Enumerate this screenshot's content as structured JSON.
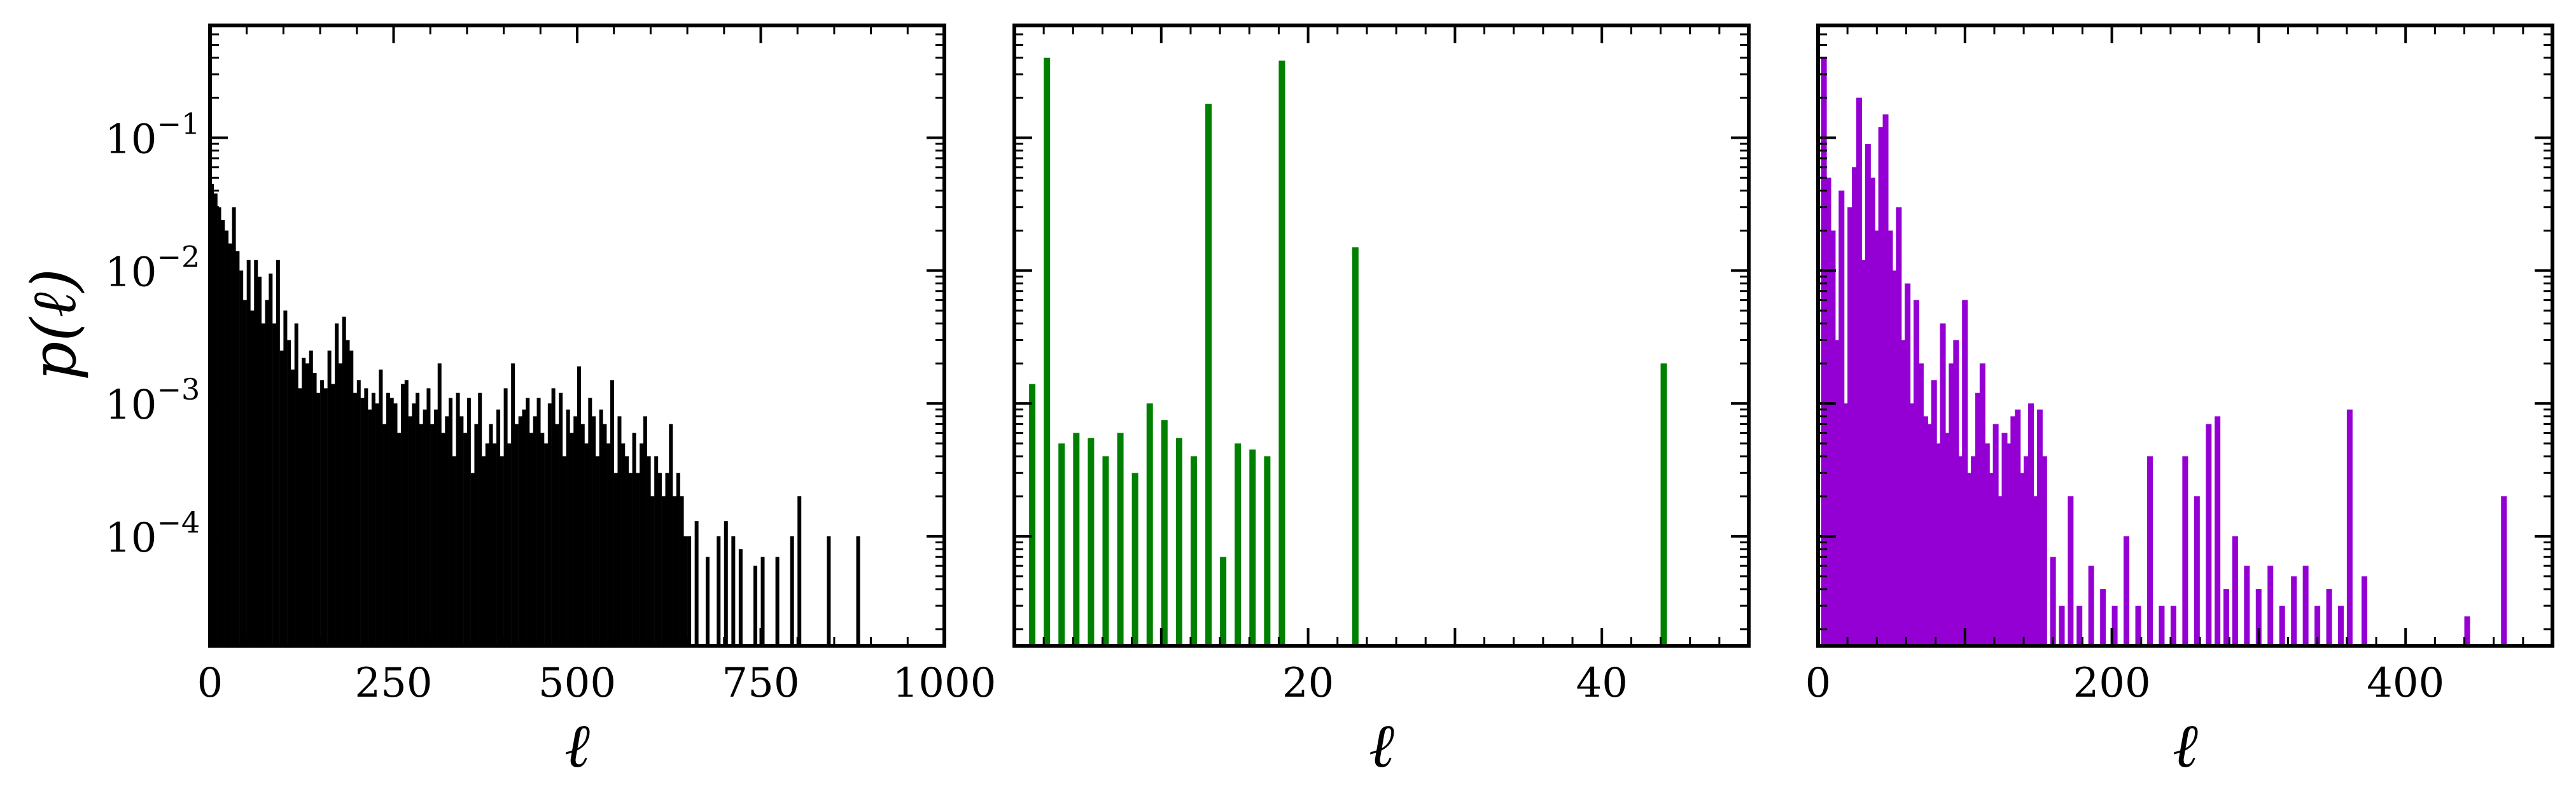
{
  "chart_data": [
    {
      "type": "bar",
      "panel": "left",
      "color": "#000000",
      "xlabel": "ℓ",
      "ylabel": "p(ℓ)",
      "xlim": [
        0,
        1000
      ],
      "ylim": [
        1.5e-05,
        0.7
      ],
      "yscale": "log",
      "xticks": [
        0,
        250,
        500,
        750,
        1000
      ],
      "xtick_labels": [
        "0",
        "250",
        "500",
        "750",
        "1000"
      ],
      "ytick_labels": [
        {
          "value": 0.1,
          "base": "10",
          "exp": "−1"
        },
        {
          "value": 0.01,
          "base": "10",
          "exp": "−2"
        },
        {
          "value": 0.001,
          "base": "10",
          "exp": "−3"
        },
        {
          "value": 0.0001,
          "base": "10",
          "exp": "−4"
        }
      ],
      "x": [
        0,
        5,
        10,
        15,
        20,
        25,
        30,
        35,
        40,
        45,
        50,
        55,
        60,
        65,
        70,
        75,
        80,
        85,
        90,
        95,
        100,
        105,
        110,
        115,
        120,
        125,
        130,
        135,
        140,
        145,
        150,
        155,
        160,
        165,
        170,
        175,
        180,
        185,
        190,
        195,
        200,
        205,
        210,
        215,
        220,
        225,
        230,
        235,
        240,
        245,
        250,
        255,
        260,
        265,
        270,
        275,
        280,
        285,
        290,
        295,
        300,
        305,
        310,
        315,
        320,
        325,
        330,
        335,
        340,
        345,
        350,
        355,
        360,
        365,
        370,
        375,
        380,
        385,
        390,
        395,
        400,
        405,
        410,
        415,
        420,
        425,
        430,
        435,
        440,
        445,
        450,
        455,
        460,
        465,
        470,
        475,
        480,
        485,
        490,
        495,
        500,
        505,
        510,
        515,
        520,
        525,
        530,
        535,
        540,
        545,
        550,
        555,
        560,
        565,
        570,
        575,
        580,
        585,
        590,
        595,
        600,
        605,
        610,
        615,
        620,
        625,
        630,
        635,
        640,
        645,
        650,
        660,
        675,
        690,
        700,
        710,
        720,
        740,
        750,
        770,
        790,
        800,
        840,
        880
      ],
      "values": [
        0.045,
        0.038,
        0.03,
        0.024,
        0.02,
        0.016,
        0.03,
        0.014,
        0.01,
        0.006,
        0.012,
        0.005,
        0.012,
        0.009,
        0.004,
        0.006,
        0.0095,
        0.004,
        0.012,
        0.0025,
        0.005,
        0.003,
        0.0018,
        0.004,
        0.0013,
        0.0022,
        0.002,
        0.0025,
        0.0017,
        0.0012,
        0.0015,
        0.0013,
        0.0025,
        0.0014,
        0.004,
        0.002,
        0.0045,
        0.003,
        0.0025,
        0.0012,
        0.0015,
        0.0011,
        0.0013,
        0.0009,
        0.0012,
        0.001,
        0.0018,
        0.0007,
        0.0012,
        0.0011,
        0.001,
        0.0006,
        0.0014,
        0.0015,
        0.0008,
        0.001,
        0.0012,
        0.0007,
        0.0009,
        0.0013,
        0.0007,
        0.0009,
        0.002,
        0.0006,
        0.0008,
        0.0011,
        0.0004,
        0.0012,
        0.0008,
        0.0006,
        0.0011,
        0.0003,
        0.0007,
        0.0012,
        0.0004,
        0.0005,
        0.0007,
        0.0005,
        0.0009,
        0.0004,
        0.0013,
        0.0005,
        0.002,
        0.0007,
        0.0008,
        0.0009,
        0.0011,
        0.0006,
        0.0008,
        0.0011,
        0.0006,
        0.0005,
        0.001,
        0.0013,
        0.0007,
        0.0012,
        0.0004,
        0.0009,
        0.0006,
        0.0008,
        0.0019,
        0.0007,
        0.0005,
        0.0011,
        0.0008,
        0.0004,
        0.0009,
        0.0007,
        0.0005,
        0.0015,
        0.0003,
        0.0008,
        0.0005,
        0.0004,
        0.0003,
        0.0006,
        0.0003,
        0.0005,
        0.0008,
        0.0004,
        0.0002,
        0.0004,
        0.0003,
        0.0002,
        0.0003,
        0.0007,
        0.0002,
        0.0003,
        0.0002,
        0.0001,
        0.0001,
        0.00013,
        7e-05,
        0.0001,
        0.00013,
        0.0001,
        8e-05,
        6e-05,
        7e-05,
        7e-05,
        0.0001,
        0.0002,
        0.0001,
        0.0001
      ]
    },
    {
      "type": "bar",
      "panel": "middle",
      "color": "#008000",
      "xlabel": "ℓ",
      "xlim": [
        0,
        50
      ],
      "ylim": [
        1.5e-05,
        0.7
      ],
      "yscale": "log",
      "xticks": [
        20,
        40
      ],
      "xtick_labels": [
        "20",
        "40"
      ],
      "x": [
        1,
        2,
        3,
        4,
        5,
        6,
        7,
        8,
        9,
        10,
        11,
        12,
        13,
        14,
        15,
        16,
        17,
        18,
        23,
        44
      ],
      "values": [
        0.0014,
        0.4,
        0.0005,
        0.0006,
        0.00055,
        0.0004,
        0.0006,
        0.0003,
        0.001,
        0.00075,
        0.00055,
        0.0004,
        0.18,
        7e-05,
        0.0005,
        0.00045,
        0.0004,
        0.38,
        0.015,
        0.002
      ]
    },
    {
      "type": "bar",
      "panel": "right",
      "color": "#9400d3",
      "xlabel": "ℓ",
      "xlim": [
        0,
        500
      ],
      "ylim": [
        1.5e-05,
        0.7
      ],
      "yscale": "log",
      "xticks": [
        0,
        200,
        400
      ],
      "xtick_labels": [
        "0",
        "200",
        "400"
      ],
      "x": [
        2,
        5,
        8,
        11,
        14,
        17,
        20,
        23,
        26,
        29,
        32,
        35,
        38,
        41,
        44,
        47,
        50,
        53,
        56,
        59,
        62,
        65,
        68,
        71,
        74,
        77,
        80,
        83,
        86,
        89,
        92,
        95,
        98,
        101,
        104,
        107,
        110,
        113,
        116,
        119,
        122,
        125,
        128,
        131,
        134,
        137,
        140,
        143,
        146,
        149,
        152,
        158,
        164,
        170,
        176,
        184,
        192,
        200,
        208,
        216,
        224,
        232,
        240,
        248,
        256,
        264,
        270,
        276,
        282,
        290,
        298,
        306,
        314,
        322,
        330,
        338,
        346,
        354,
        360,
        370,
        440,
        465
      ],
      "values": [
        0.4,
        0.05,
        0.02,
        0.003,
        0.04,
        0.001,
        0.03,
        0.06,
        0.2,
        0.012,
        0.09,
        0.05,
        0.02,
        0.12,
        0.15,
        0.02,
        0.01,
        0.03,
        0.003,
        0.008,
        0.001,
        0.006,
        0.002,
        0.0008,
        0.0007,
        0.0015,
        0.0005,
        0.004,
        0.0006,
        0.002,
        0.003,
        0.0004,
        0.006,
        0.0003,
        0.0004,
        0.0012,
        0.002,
        0.0005,
        0.0003,
        0.0007,
        0.0002,
        0.0006,
        0.0005,
        0.0008,
        0.0009,
        0.0003,
        0.0004,
        0.001,
        0.0002,
        0.0009,
        0.0004,
        7e-05,
        3e-05,
        0.0002,
        3e-05,
        6e-05,
        4e-05,
        3e-05,
        0.0001,
        3e-05,
        0.0004,
        3e-05,
        3e-05,
        0.0004,
        0.0002,
        0.0007,
        0.0008,
        4e-05,
        0.0001,
        6e-05,
        4e-05,
        6e-05,
        3e-05,
        5e-05,
        6e-05,
        3e-05,
        4e-05,
        3e-05,
        0.0009,
        5e-05,
        2.5e-05,
        0.0002
      ]
    }
  ]
}
